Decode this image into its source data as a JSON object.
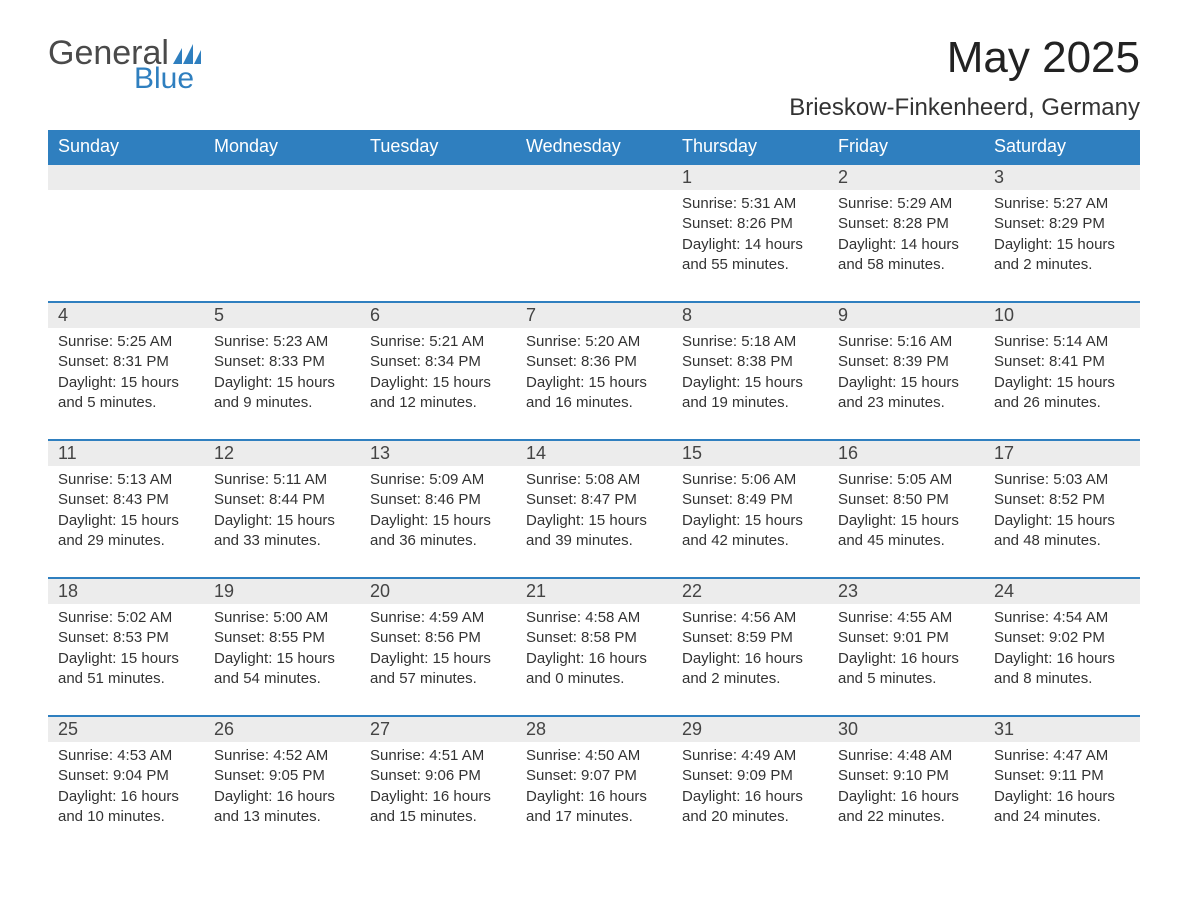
{
  "logo": {
    "general": "General",
    "blue": "Blue",
    "flag_color": "#2f7fbf"
  },
  "title": "May 2025",
  "location": "Brieskow-Finkenheerd, Germany",
  "colors": {
    "header_bg": "#2f7fbf",
    "header_text": "#ffffff",
    "daynum_bg": "#ececec",
    "daynum_border": "#2f7fbf",
    "text": "#333333",
    "page_bg": "#ffffff"
  },
  "daynames": [
    "Sunday",
    "Monday",
    "Tuesday",
    "Wednesday",
    "Thursday",
    "Friday",
    "Saturday"
  ],
  "weeks": [
    [
      null,
      null,
      null,
      null,
      {
        "n": "1",
        "sunrise": "5:31 AM",
        "sunset": "8:26 PM",
        "daylight": "14 hours and 55 minutes."
      },
      {
        "n": "2",
        "sunrise": "5:29 AM",
        "sunset": "8:28 PM",
        "daylight": "14 hours and 58 minutes."
      },
      {
        "n": "3",
        "sunrise": "5:27 AM",
        "sunset": "8:29 PM",
        "daylight": "15 hours and 2 minutes."
      }
    ],
    [
      {
        "n": "4",
        "sunrise": "5:25 AM",
        "sunset": "8:31 PM",
        "daylight": "15 hours and 5 minutes."
      },
      {
        "n": "5",
        "sunrise": "5:23 AM",
        "sunset": "8:33 PM",
        "daylight": "15 hours and 9 minutes."
      },
      {
        "n": "6",
        "sunrise": "5:21 AM",
        "sunset": "8:34 PM",
        "daylight": "15 hours and 12 minutes."
      },
      {
        "n": "7",
        "sunrise": "5:20 AM",
        "sunset": "8:36 PM",
        "daylight": "15 hours and 16 minutes."
      },
      {
        "n": "8",
        "sunrise": "5:18 AM",
        "sunset": "8:38 PM",
        "daylight": "15 hours and 19 minutes."
      },
      {
        "n": "9",
        "sunrise": "5:16 AM",
        "sunset": "8:39 PM",
        "daylight": "15 hours and 23 minutes."
      },
      {
        "n": "10",
        "sunrise": "5:14 AM",
        "sunset": "8:41 PM",
        "daylight": "15 hours and 26 minutes."
      }
    ],
    [
      {
        "n": "11",
        "sunrise": "5:13 AM",
        "sunset": "8:43 PM",
        "daylight": "15 hours and 29 minutes."
      },
      {
        "n": "12",
        "sunrise": "5:11 AM",
        "sunset": "8:44 PM",
        "daylight": "15 hours and 33 minutes."
      },
      {
        "n": "13",
        "sunrise": "5:09 AM",
        "sunset": "8:46 PM",
        "daylight": "15 hours and 36 minutes."
      },
      {
        "n": "14",
        "sunrise": "5:08 AM",
        "sunset": "8:47 PM",
        "daylight": "15 hours and 39 minutes."
      },
      {
        "n": "15",
        "sunrise": "5:06 AM",
        "sunset": "8:49 PM",
        "daylight": "15 hours and 42 minutes."
      },
      {
        "n": "16",
        "sunrise": "5:05 AM",
        "sunset": "8:50 PM",
        "daylight": "15 hours and 45 minutes."
      },
      {
        "n": "17",
        "sunrise": "5:03 AM",
        "sunset": "8:52 PM",
        "daylight": "15 hours and 48 minutes."
      }
    ],
    [
      {
        "n": "18",
        "sunrise": "5:02 AM",
        "sunset": "8:53 PM",
        "daylight": "15 hours and 51 minutes."
      },
      {
        "n": "19",
        "sunrise": "5:00 AM",
        "sunset": "8:55 PM",
        "daylight": "15 hours and 54 minutes."
      },
      {
        "n": "20",
        "sunrise": "4:59 AM",
        "sunset": "8:56 PM",
        "daylight": "15 hours and 57 minutes."
      },
      {
        "n": "21",
        "sunrise": "4:58 AM",
        "sunset": "8:58 PM",
        "daylight": "16 hours and 0 minutes."
      },
      {
        "n": "22",
        "sunrise": "4:56 AM",
        "sunset": "8:59 PM",
        "daylight": "16 hours and 2 minutes."
      },
      {
        "n": "23",
        "sunrise": "4:55 AM",
        "sunset": "9:01 PM",
        "daylight": "16 hours and 5 minutes."
      },
      {
        "n": "24",
        "sunrise": "4:54 AM",
        "sunset": "9:02 PM",
        "daylight": "16 hours and 8 minutes."
      }
    ],
    [
      {
        "n": "25",
        "sunrise": "4:53 AM",
        "sunset": "9:04 PM",
        "daylight": "16 hours and 10 minutes."
      },
      {
        "n": "26",
        "sunrise": "4:52 AM",
        "sunset": "9:05 PM",
        "daylight": "16 hours and 13 minutes."
      },
      {
        "n": "27",
        "sunrise": "4:51 AM",
        "sunset": "9:06 PM",
        "daylight": "16 hours and 15 minutes."
      },
      {
        "n": "28",
        "sunrise": "4:50 AM",
        "sunset": "9:07 PM",
        "daylight": "16 hours and 17 minutes."
      },
      {
        "n": "29",
        "sunrise": "4:49 AM",
        "sunset": "9:09 PM",
        "daylight": "16 hours and 20 minutes."
      },
      {
        "n": "30",
        "sunrise": "4:48 AM",
        "sunset": "9:10 PM",
        "daylight": "16 hours and 22 minutes."
      },
      {
        "n": "31",
        "sunrise": "4:47 AM",
        "sunset": "9:11 PM",
        "daylight": "16 hours and 24 minutes."
      }
    ]
  ],
  "labels": {
    "sunrise": "Sunrise: ",
    "sunset": "Sunset: ",
    "daylight": "Daylight: "
  }
}
